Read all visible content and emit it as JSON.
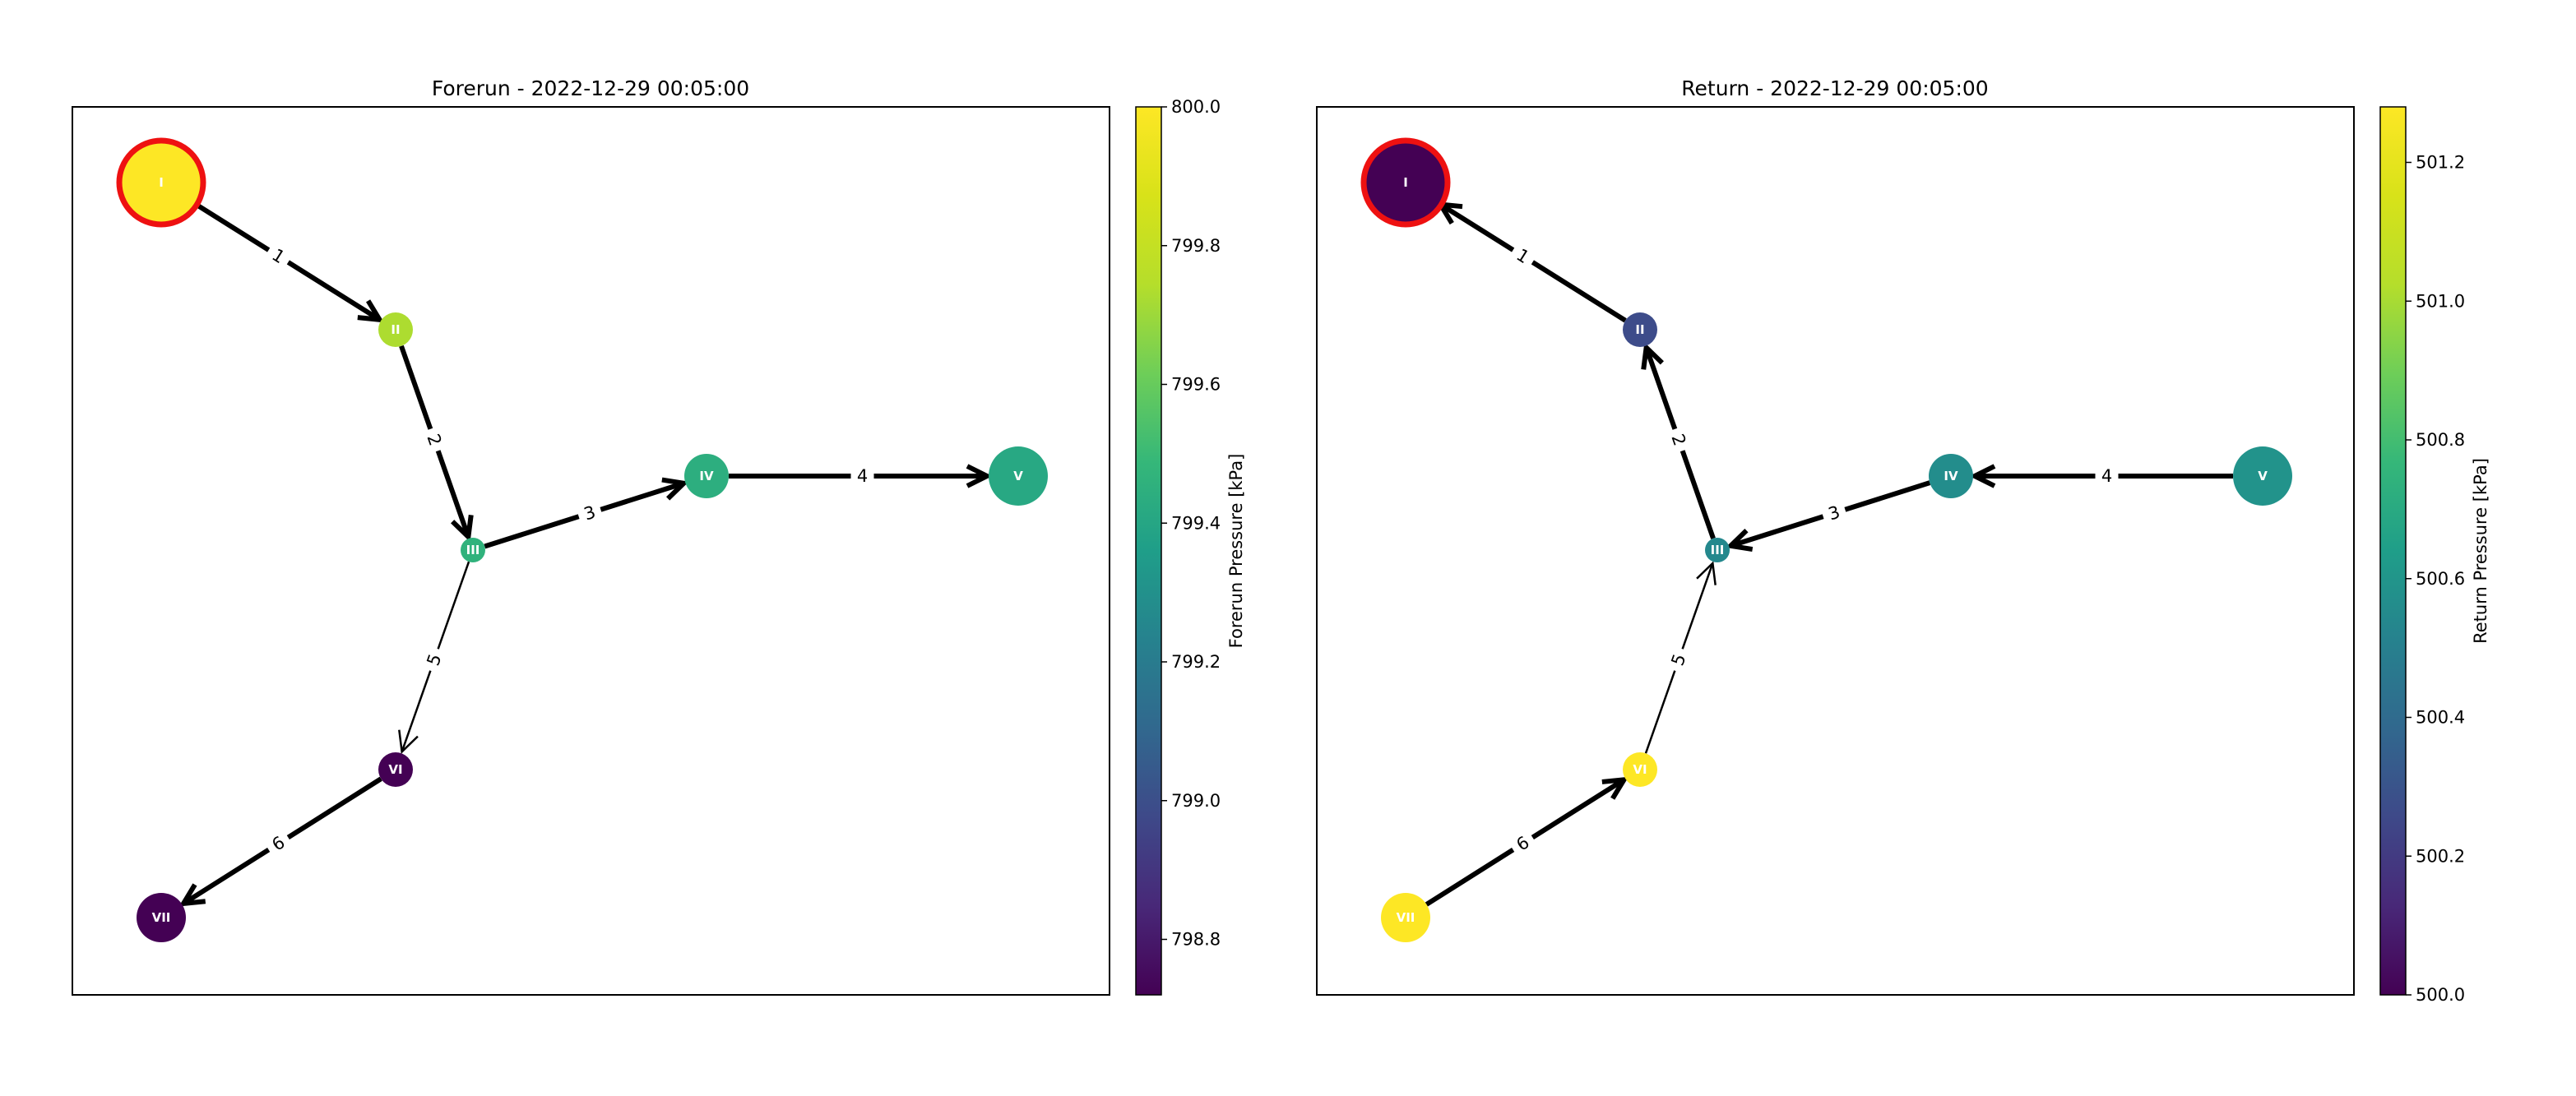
{
  "panels": [
    {
      "id": "forerun",
      "title": "Forerun - 2022-12-29 00:05:00",
      "colorbar": {
        "label": "Forerun Pressure [kPa]",
        "min": 798.72,
        "max": 800.0,
        "ticks": [
          "798.8",
          "799.0",
          "799.2",
          "799.4",
          "799.6",
          "799.8",
          "800.0"
        ],
        "tick_values": [
          798.8,
          799.0,
          799.2,
          799.4,
          799.6,
          799.8,
          800.0
        ]
      },
      "nodes": [
        {
          "label": "I",
          "value": 800.0,
          "source": true
        },
        {
          "label": "II",
          "value": 799.73
        },
        {
          "label": "III",
          "value": 799.46
        },
        {
          "label": "IV",
          "value": 799.44
        },
        {
          "label": "V",
          "value": 799.41
        },
        {
          "label": "VI",
          "value": 798.72
        },
        {
          "label": "VII",
          "value": 798.72
        }
      ],
      "edges": [
        {
          "label": "1",
          "from": "I",
          "to": "II",
          "width": "thick"
        },
        {
          "label": "2",
          "from": "II",
          "to": "III",
          "width": "thick"
        },
        {
          "label": "3",
          "from": "III",
          "to": "IV",
          "width": "thick"
        },
        {
          "label": "4",
          "from": "IV",
          "to": "V",
          "width": "thick"
        },
        {
          "label": "5",
          "from": "III",
          "to": "VI",
          "width": "thin"
        },
        {
          "label": "6",
          "from": "VI",
          "to": "VII",
          "width": "thick"
        }
      ]
    },
    {
      "id": "return",
      "title": "Return - 2022-12-29 00:05:00",
      "colorbar": {
        "label": "Return Pressure [kPa]",
        "min": 500.0,
        "max": 501.28,
        "ticks": [
          "500.0",
          "500.2",
          "500.4",
          "500.6",
          "500.8",
          "501.0",
          "501.2"
        ],
        "tick_values": [
          500.0,
          500.2,
          500.4,
          500.6,
          500.8,
          501.0,
          501.2
        ]
      },
      "nodes": [
        {
          "label": "I",
          "value": 500.0,
          "source": true
        },
        {
          "label": "II",
          "value": 500.27
        },
        {
          "label": "III",
          "value": 500.54
        },
        {
          "label": "IV",
          "value": 500.56
        },
        {
          "label": "V",
          "value": 500.59
        },
        {
          "label": "VI",
          "value": 501.28
        },
        {
          "label": "VII",
          "value": 501.28
        }
      ],
      "edges": [
        {
          "label": "1",
          "from": "II",
          "to": "I",
          "width": "thick"
        },
        {
          "label": "2",
          "from": "III",
          "to": "II",
          "width": "thick"
        },
        {
          "label": "3",
          "from": "IV",
          "to": "III",
          "width": "thick"
        },
        {
          "label": "4",
          "from": "V",
          "to": "IV",
          "width": "thick"
        },
        {
          "label": "5",
          "from": "VI",
          "to": "III",
          "width": "thin"
        },
        {
          "label": "6",
          "from": "VII",
          "to": "VI",
          "width": "thick"
        }
      ]
    }
  ],
  "colors": {
    "source_ring": "#ee1111",
    "edge": "#000000",
    "node_label": "#ffffff"
  }
}
